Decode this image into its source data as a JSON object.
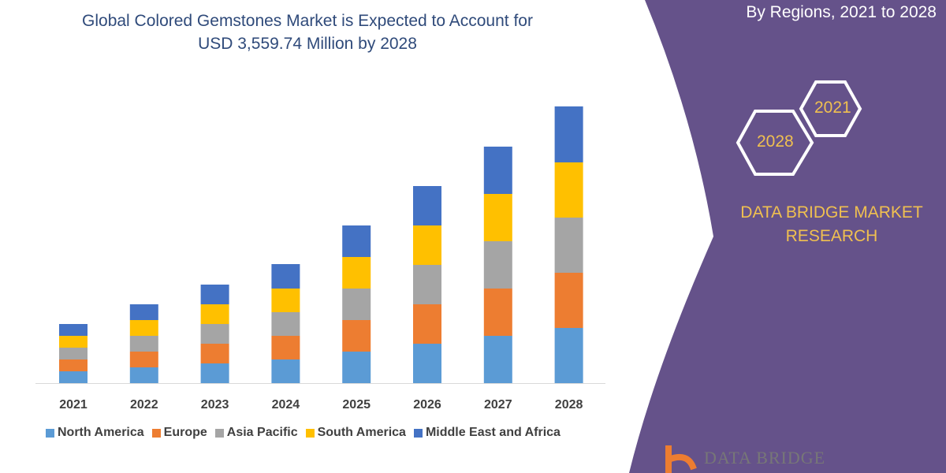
{
  "title_line1": "Global Colored Gemstones Market is Expected to Account for",
  "title_line2": "USD 3,559.74 Million by 2028",
  "side_panel": {
    "subtitle": "By Regions, 2021 to 2028",
    "hex_year_a": "2021",
    "hex_year_b": "2028",
    "brand_line1": "DATA BRIDGE MARKET",
    "brand_line2": "RESEARCH",
    "logo_text": "DATA BRIDGE",
    "panel_color": "#65528a",
    "accent_color": "#f0c050"
  },
  "chart_data": {
    "type": "bar",
    "stacked": true,
    "categories": [
      "2021",
      "2022",
      "2023",
      "2024",
      "2025",
      "2026",
      "2027",
      "2028"
    ],
    "series": [
      {
        "name": "North America",
        "color": "#5b9bd5",
        "values": [
          15,
          20,
          25,
          30,
          40,
          50,
          60,
          70
        ]
      },
      {
        "name": "Europe",
        "color": "#ed7d31",
        "values": [
          15,
          20,
          25,
          30,
          40,
          50,
          60,
          70
        ]
      },
      {
        "name": "Asia Pacific",
        "color": "#a5a5a5",
        "values": [
          15,
          20,
          25,
          30,
          40,
          50,
          60,
          70
        ]
      },
      {
        "name": "South America",
        "color": "#ffc000",
        "values": [
          15,
          20,
          25,
          30,
          40,
          50,
          60,
          70
        ]
      },
      {
        "name": "Middle East and Africa",
        "color": "#4472c4",
        "values": [
          15,
          20,
          25,
          31,
          40,
          50,
          60,
          71
        ]
      }
    ],
    "y_axis_shown": false,
    "grid": false,
    "legend_position": "bottom"
  }
}
